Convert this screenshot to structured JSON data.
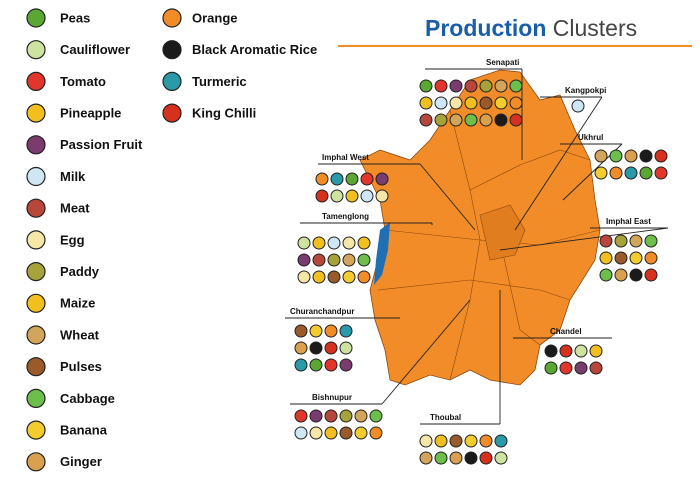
{
  "title": {
    "highlight": "Production",
    "rest": "Clusters"
  },
  "legend": [
    "Peas",
    "Cauliflower",
    "Tomato",
    "Pineapple",
    "Passion Fruit",
    "Milk",
    "Meat",
    "Egg",
    "Paddy",
    "Maize",
    "Wheat",
    "Pulses",
    "Cabbage",
    "Banana",
    "Ginger",
    "Orange",
    "Black Aromatic Rice",
    "Turmeric",
    "King Chilli"
  ],
  "districts": [
    "Senapati",
    "Kangpokpi",
    "Ukhrul",
    "Imphal West",
    "Tamenglong",
    "Imphal East",
    "Churanchandpur",
    "Chandel",
    "Bishnupur",
    "Thoubal"
  ]
}
